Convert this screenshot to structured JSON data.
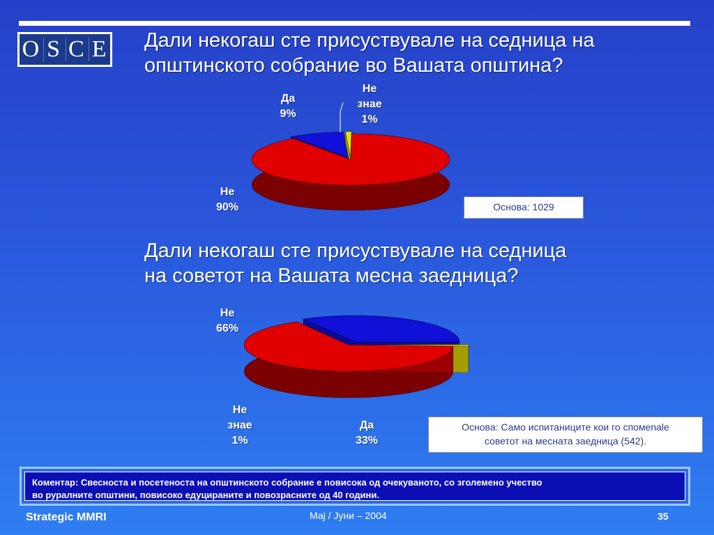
{
  "logo": {
    "letters": [
      "O",
      "S",
      "C",
      "E"
    ]
  },
  "colors": {
    "no": "#e00000",
    "yes": "#1010d8",
    "dont_know": "#e8e000"
  },
  "question1": {
    "line1": "Дали некогаш сте присуствувале на седница на",
    "line2": "општинското собрание во Вашата општина?"
  },
  "question2": {
    "line1": "Дали некогаш сте присуствувале на седница",
    "line2": "на советот на Вашата месна заедница?"
  },
  "chart_data": [
    {
      "type": "pie",
      "title": "Дали некогаш сте присуствувале на седница на општинското собрание во Вашата општина?",
      "categories": [
        "Не",
        "Да",
        "Не знае"
      ],
      "values": [
        90,
        9,
        1
      ],
      "labels": {
        "no": {
          "name": "Не",
          "pct": "90%"
        },
        "yes": {
          "name": "Да",
          "pct": "9%"
        },
        "dk": {
          "line1": "Не",
          "line2": "знае",
          "pct": "1%"
        }
      },
      "base": "Основа: 1029"
    },
    {
      "type": "pie",
      "title": "Дали некогаш сте присуствувале на седница на советот на Вашата месна заедница?",
      "categories": [
        "Не",
        "Да",
        "Не знае"
      ],
      "values": [
        66,
        33,
        1
      ],
      "labels": {
        "no": {
          "name": "Не",
          "pct": "66%"
        },
        "yes": {
          "name": "Да",
          "pct": "33%"
        },
        "dk": {
          "line1": "Не",
          "line2": "знае",
          "pct": "1%"
        }
      },
      "base_line1": "Основа: Само испитаниците кои го спомenale",
      "base_line2": "советот на месната заедница (542)."
    }
  ],
  "comment": {
    "line1": "Коментар: Свесноста и посетеноста на општинското собрание е повисока од очекуваното, со зголемено учество",
    "line2": "во руралните општини, повисоко едуцираните и повозрасните од 40 години."
  },
  "footer": {
    "left": "Strategic MMRI",
    "center": "Мај / Јуни – 2004",
    "page": "35"
  }
}
